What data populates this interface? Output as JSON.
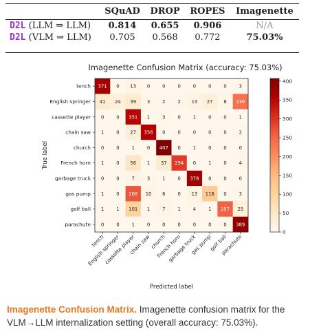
{
  "table": {
    "headers": [
      "",
      "SQuAD",
      "DROP",
      "ROPES",
      "Imagenette"
    ],
    "rows": [
      {
        "tag": "D2L",
        "setting": "(LLM ⇒ LLM)",
        "squad": "0.814",
        "drop": "0.655",
        "ropes": "0.906",
        "imagenette": "N/A"
      },
      {
        "tag": "D2L",
        "setting": "(VLM ⇒ LLM)",
        "squad": "0.705",
        "drop": "0.568",
        "ropes": "0.772",
        "imagenette": "75.03%"
      }
    ]
  },
  "chart_data": {
    "type": "heatmap",
    "title": "Imagenette Confusion Matrix (accuracy: 75.03%)",
    "xlabel": "Predicted label",
    "ylabel": "True label",
    "labels": [
      "tench",
      "English springer",
      "cassette player",
      "chain saw",
      "church",
      "French horn",
      "garbage truck",
      "gas pump",
      "golf ball",
      "parachute"
    ],
    "matrix": [
      [
        371,
        0,
        13,
        0,
        0,
        0,
        0,
        0,
        0,
        3
      ],
      [
        41,
        24,
        39,
        3,
        2,
        2,
        13,
        27,
        8,
        236
      ],
      [
        0,
        0,
        351,
        1,
        3,
        0,
        1,
        0,
        0,
        1
      ],
      [
        1,
        0,
        27,
        356,
        0,
        0,
        0,
        0,
        0,
        2
      ],
      [
        0,
        0,
        1,
        0,
        407,
        0,
        1,
        0,
        0,
        0
      ],
      [
        1,
        0,
        56,
        1,
        37,
        294,
        0,
        1,
        0,
        4
      ],
      [
        0,
        0,
        7,
        3,
        1,
        0,
        378,
        0,
        0,
        0
      ],
      [
        1,
        0,
        268,
        10,
        6,
        0,
        13,
        118,
        0,
        3
      ],
      [
        1,
        1,
        101,
        1,
        7,
        1,
        4,
        1,
        257,
        25
      ],
      [
        0,
        0,
        1,
        0,
        0,
        0,
        0,
        0,
        0,
        389
      ]
    ],
    "colorbar_ticks": [
      0,
      50,
      100,
      150,
      200,
      250,
      300,
      350,
      400
    ],
    "vmin": 0,
    "vmax": 407,
    "colormap": "OrRd"
  },
  "caption": {
    "title": "Imagenette Confusion Matrix.",
    "text": " Imagenette confusion matrix for the VLM→LLM internalization setting (overall accuracy: 75.03%)."
  }
}
